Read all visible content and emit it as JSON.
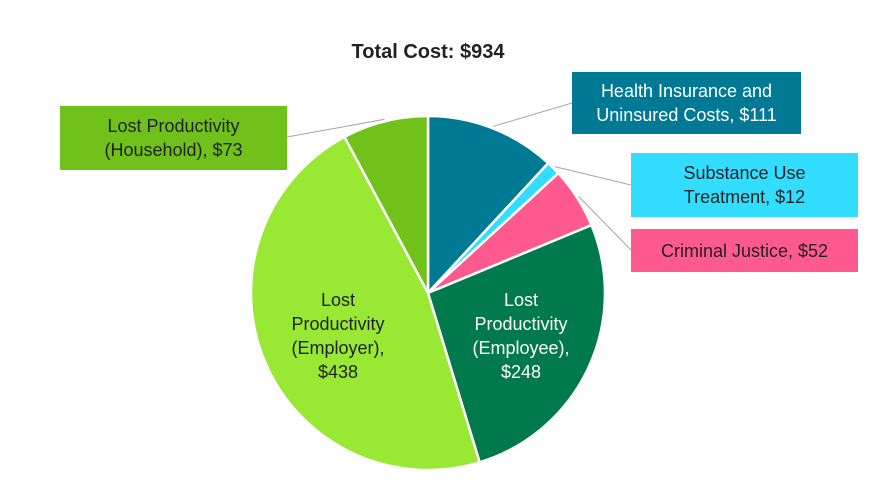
{
  "chart_data": {
    "type": "pie",
    "title": "Total Cost: $934",
    "total": 934,
    "start": "top, clockwise",
    "slices": [
      {
        "name": "Health Insurance and Uninsured Costs",
        "value": 111,
        "label": "Health Insurance and Uninsured Costs, $111",
        "color": "#007A94"
      },
      {
        "name": "Substance Use Treatment",
        "value": 12,
        "label": "Substance Use Treatment, $12",
        "color": "#33DDFF"
      },
      {
        "name": "Criminal Justice",
        "value": 52,
        "label": "Criminal Justice, $52",
        "color": "#FF5A8F"
      },
      {
        "name": "Lost Productivity (Employee)",
        "value": 248,
        "label": "Lost Productivity (Employee), $248",
        "color": "#007A4C"
      },
      {
        "name": "Lost Productivity (Employer)",
        "value": 438,
        "label": "Lost Productivity (Employer), $438",
        "color": "#99E833"
      },
      {
        "name": "Lost Productivity (Household)",
        "value": 73,
        "label": "Lost Productivity (Household), $73",
        "color": "#70C11A"
      }
    ]
  }
}
